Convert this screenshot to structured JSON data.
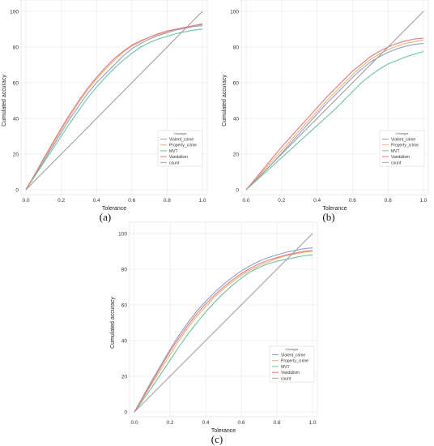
{
  "figure": {
    "captions": [
      "(a)",
      "(b)",
      "(c)"
    ]
  },
  "chart_data": [
    {
      "type": "line",
      "panel": "(a)",
      "xlabel": "Tolerance",
      "ylabel": "Cumulated accuracy",
      "xlim": [
        0,
        1
      ],
      "ylim": [
        0,
        100
      ],
      "xticks": [
        "0.0",
        "0.2",
        "0.4",
        "0.6",
        "0.8",
        "1.0"
      ],
      "yticks": [
        "0",
        "20",
        "40",
        "60",
        "80",
        "100"
      ],
      "grid": true,
      "legend_placement": "center-right",
      "legend_title": "Crimetype",
      "x": [
        0,
        0.05,
        0.1,
        0.15,
        0.2,
        0.25,
        0.3,
        0.35,
        0.4,
        0.45,
        0.5,
        0.55,
        0.6,
        0.65,
        0.7,
        0.75,
        0.8,
        0.85,
        0.9,
        0.95,
        1.0
      ],
      "series": [
        {
          "name": "Violent_crime",
          "color": "#8ea0cc",
          "values": [
            0,
            8,
            16,
            24,
            32,
            40,
            47,
            54,
            60,
            65,
            70,
            75,
            79,
            82,
            84.5,
            86.5,
            88,
            89.5,
            90.5,
            91.5,
            92
          ]
        },
        {
          "name": "Property_crime",
          "color": "#e5b77a",
          "values": [
            0,
            8.5,
            17,
            25,
            33.5,
            41.5,
            49,
            56,
            62,
            67.5,
            72.5,
            77,
            80.5,
            83,
            85.5,
            87,
            88.5,
            90,
            91,
            92,
            92.5
          ]
        },
        {
          "name": "MVT",
          "color": "#6cc3a0",
          "values": [
            0,
            7.5,
            15,
            22.5,
            30,
            37.5,
            44.5,
            51.5,
            57.5,
            63,
            68,
            72.5,
            76.5,
            80,
            82.5,
            84.5,
            86,
            87.5,
            88.5,
            89.5,
            90
          ]
        },
        {
          "name": "Vandalism",
          "color": "#e8787a",
          "values": [
            0,
            8.5,
            17.5,
            26,
            34.5,
            42.5,
            50,
            57,
            63,
            68.5,
            73.5,
            77.5,
            81,
            83.5,
            85.5,
            87.5,
            89,
            90,
            91,
            92,
            93
          ]
        },
        {
          "name": "count",
          "color": "#9e9e9e",
          "values": [
            0,
            5,
            10,
            15,
            20,
            25,
            30,
            35,
            40,
            45,
            50,
            55,
            60,
            65,
            70,
            75,
            80,
            85,
            90,
            95,
            100
          ]
        }
      ]
    },
    {
      "type": "line",
      "panel": "(b)",
      "xlabel": "Tolerance",
      "ylabel": "Cumulated accuracy",
      "xlim": [
        0,
        1
      ],
      "ylim": [
        0,
        100
      ],
      "xticks": [
        "0.0",
        "0.2",
        "0.4",
        "0.6",
        "0.8",
        "1.0"
      ],
      "yticks": [
        "0",
        "20",
        "40",
        "60",
        "80",
        "100"
      ],
      "grid": true,
      "legend_placement": "center-right",
      "legend_title": "Crimetype",
      "x": [
        0,
        0.05,
        0.1,
        0.15,
        0.2,
        0.25,
        0.3,
        0.35,
        0.4,
        0.45,
        0.5,
        0.55,
        0.6,
        0.65,
        0.7,
        0.75,
        0.8,
        0.85,
        0.9,
        0.95,
        1.0
      ],
      "series": [
        {
          "name": "Violent_crime",
          "color": "#8ea0cc",
          "values": [
            0,
            5,
            10,
            15,
            20.5,
            26,
            31.5,
            37,
            42.5,
            48,
            53,
            58,
            63,
            67.5,
            71.5,
            74.5,
            77,
            79,
            80.5,
            81.5,
            82
          ]
        },
        {
          "name": "Property_crime",
          "color": "#e5b77a",
          "values": [
            0,
            5.5,
            11,
            16.5,
            22,
            27.5,
            33,
            38.5,
            44,
            49.5,
            54.5,
            59.5,
            64.5,
            69,
            73,
            76,
            78.5,
            80.5,
            82,
            83,
            84
          ]
        },
        {
          "name": "MVT",
          "color": "#6cc3a0",
          "values": [
            0,
            4.5,
            9,
            13.5,
            18,
            22.5,
            27,
            31.5,
            36,
            40.5,
            45,
            50,
            55,
            60,
            64,
            67.5,
            70.5,
            72.5,
            74.5,
            76,
            77.5
          ]
        },
        {
          "name": "Vandalism",
          "color": "#e8787a",
          "values": [
            0,
            6,
            12,
            18,
            24,
            29.5,
            35,
            40.5,
            46,
            51.5,
            56.5,
            61.5,
            66.5,
            70.5,
            74.5,
            77.5,
            80,
            82,
            83.5,
            84.5,
            85
          ]
        },
        {
          "name": "count",
          "color": "#9e9e9e",
          "values": [
            0,
            5,
            10,
            15,
            20,
            25,
            30,
            35,
            40,
            45,
            50,
            55,
            60,
            65,
            70,
            75,
            80,
            85,
            90,
            95,
            100
          ]
        }
      ]
    },
    {
      "type": "line",
      "panel": "(c)",
      "xlabel": "Tolerance",
      "ylabel": "Cumulated accuracy",
      "xlim": [
        0,
        1
      ],
      "ylim": [
        0,
        100
      ],
      "xticks": [
        "0.0",
        "0.2",
        "0.4",
        "0.6",
        "0.8",
        "1.0"
      ],
      "yticks": [
        "0",
        "20",
        "40",
        "60",
        "80",
        "100"
      ],
      "grid": true,
      "legend_placement": "lower-right",
      "legend_title": "Crimetype",
      "x": [
        0,
        0.05,
        0.1,
        0.15,
        0.2,
        0.25,
        0.3,
        0.35,
        0.4,
        0.45,
        0.5,
        0.55,
        0.6,
        0.65,
        0.7,
        0.75,
        0.8,
        0.85,
        0.9,
        0.95,
        1.0
      ],
      "series": [
        {
          "name": "Violent_crime",
          "color": "#8ea0cc",
          "values": [
            0,
            9,
            18,
            26.5,
            35,
            43,
            50,
            56.5,
            62,
            67,
            71.5,
            75.5,
            79,
            82,
            84.5,
            86.5,
            88,
            89.5,
            90.5,
            91.5,
            92
          ]
        },
        {
          "name": "Property_crime",
          "color": "#e5b77a",
          "values": [
            0,
            8,
            16,
            24,
            32,
            40,
            47,
            53.5,
            59,
            64.5,
            69,
            73,
            76.5,
            79.5,
            82,
            84,
            86,
            87.5,
            88.5,
            89.5,
            90
          ]
        },
        {
          "name": "MVT",
          "color": "#6cc3a0",
          "values": [
            0,
            7,
            14,
            21.5,
            29,
            36.5,
            43.5,
            50,
            56,
            61.5,
            66.5,
            71,
            75,
            78.5,
            81,
            83,
            84.5,
            85.5,
            86.5,
            87.5,
            88
          ]
        },
        {
          "name": "Vandalism",
          "color": "#e8787a",
          "values": [
            0,
            8.5,
            17,
            25.5,
            34,
            41.5,
            48.5,
            55,
            60.5,
            65.5,
            70,
            74,
            77.5,
            80.5,
            83,
            85,
            86.5,
            88,
            89,
            90,
            90.5
          ]
        },
        {
          "name": "count",
          "color": "#9e9e9e",
          "values": [
            0,
            5,
            10,
            15,
            20,
            25,
            30,
            35,
            40,
            45,
            50,
            55,
            60,
            65,
            70,
            75,
            80,
            85,
            90,
            95,
            100
          ]
        }
      ]
    }
  ]
}
